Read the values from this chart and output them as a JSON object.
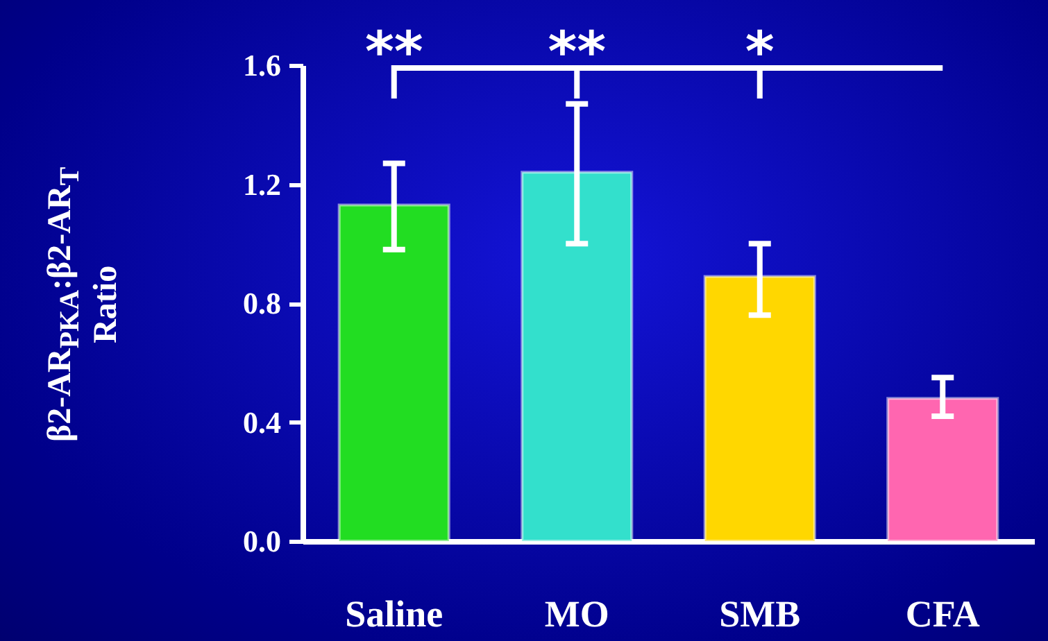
{
  "chart_data": {
    "type": "bar",
    "ylabel": "β2-AR$_{PKA}$:β2-AR$_{T}$ Ratio",
    "categories": [
      "Saline",
      "MO",
      "SMB",
      "CFA"
    ],
    "values": [
      1.13,
      1.24,
      0.89,
      0.48
    ],
    "colors": [
      "#22dd22",
      "#33e0cc",
      "#ffd700",
      "#ff66b0"
    ],
    "errors": [
      [
        0.98,
        1.27
      ],
      [
        1.0,
        1.47
      ],
      [
        0.76,
        1.0
      ],
      [
        0.42,
        0.55
      ]
    ],
    "ylim": [
      0,
      1.6
    ],
    "yticks": [
      {
        "value": 0,
        "label": "0.0"
      },
      {
        "value": 0.4,
        "label": "0.4"
      },
      {
        "value": 0.8,
        "label": "0.8"
      },
      {
        "value": 1.2,
        "label": "1.2"
      },
      {
        "value": 1.6,
        "label": "1.6"
      }
    ],
    "annotations": [
      "**",
      "**",
      "*"
    ],
    "grid": false
  }
}
